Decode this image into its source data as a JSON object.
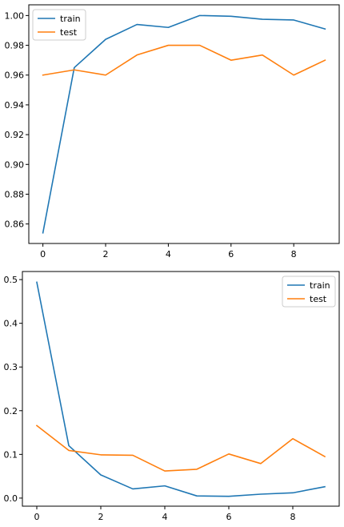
{
  "colors": {
    "train": "#1f77b4",
    "test": "#ff7f0e"
  },
  "chart_data": [
    {
      "type": "line",
      "x": [
        0,
        1,
        2,
        3,
        4,
        5,
        6,
        7,
        8,
        9
      ],
      "xticks": [
        0,
        2,
        4,
        6,
        8
      ],
      "xlim": [
        -0.45,
        9.45
      ],
      "ylim": [
        0.8469,
        1.0072
      ],
      "yticks": [
        "0.86",
        "0.88",
        "0.90",
        "0.92",
        "0.94",
        "0.96",
        "0.98",
        "1.00"
      ],
      "legend_loc": "upper-left",
      "series": [
        {
          "name": "train",
          "values": [
            0.854,
            0.965,
            0.984,
            0.994,
            0.992,
            1.0,
            0.9995,
            0.9975,
            0.997,
            0.991
          ]
        },
        {
          "name": "test",
          "values": [
            0.96,
            0.9635,
            0.96,
            0.9735,
            0.98,
            0.98,
            0.97,
            0.9735,
            0.96,
            0.97
          ]
        }
      ]
    },
    {
      "type": "line",
      "x": [
        0,
        1,
        2,
        3,
        4,
        5,
        6,
        7,
        8,
        9
      ],
      "xticks": [
        0,
        2,
        4,
        6,
        8
      ],
      "xlim": [
        -0.45,
        9.45
      ],
      "ylim": [
        -0.0185,
        0.5185
      ],
      "yticks": [
        "0.0",
        "0.1",
        "0.2",
        "0.3",
        "0.4",
        "0.5"
      ],
      "legend_loc": "upper-right",
      "series": [
        {
          "name": "train",
          "values": [
            0.494,
            0.12,
            0.053,
            0.021,
            0.028,
            0.005,
            0.004,
            0.009,
            0.012,
            0.026
          ]
        },
        {
          "name": "test",
          "values": [
            0.166,
            0.109,
            0.099,
            0.098,
            0.062,
            0.066,
            0.101,
            0.079,
            0.136,
            0.095
          ]
        }
      ]
    }
  ]
}
